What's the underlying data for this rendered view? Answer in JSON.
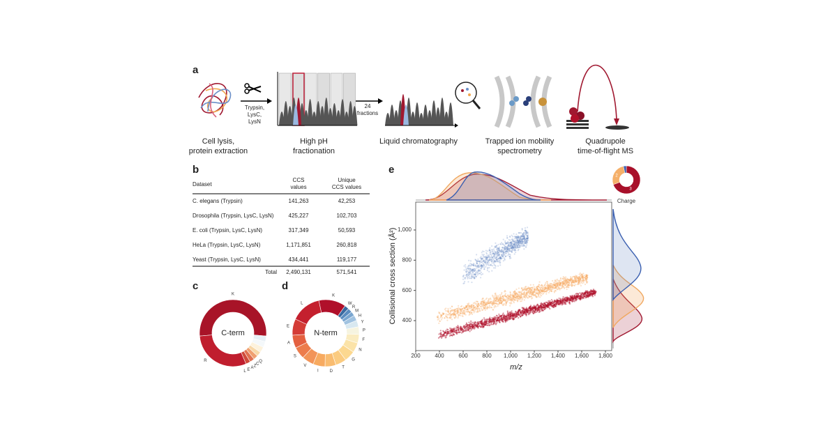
{
  "panel_a": {
    "label": "a",
    "enzymes": [
      "Trypsin,",
      "LysC,",
      "LysN"
    ],
    "fractions": [
      "24",
      "fractions"
    ],
    "steps": [
      [
        "Cell lysis,",
        "protein extraction"
      ],
      [
        "High pH",
        "fractionation"
      ],
      [
        "Liquid chromatography"
      ],
      [
        "Trapped ion mobility",
        "spectrometry"
      ],
      [
        "Quadrupole",
        "time-of-flight MS"
      ]
    ]
  },
  "panel_b": {
    "label": "b",
    "header": [
      [
        "Dataset"
      ],
      [
        "CCS",
        "values"
      ],
      [
        "Unique",
        "CCS values"
      ]
    ],
    "rows": [
      [
        "C. elegans (Trypsin)",
        "141,263",
        "42,253"
      ],
      [
        "Drosophila (Trypsin, LysC, LysN)",
        "425,227",
        "102,703"
      ],
      [
        "E. coli (Trypsin, LysC, LysN)",
        "317,349",
        "50,593"
      ],
      [
        "HeLa (Trypsin, LysC, LysN)",
        "1,171,851",
        "260,818"
      ],
      [
        "Yeast (Trypsin, LysC, LysN)",
        "434,441",
        "119,177"
      ]
    ],
    "total": [
      "Total",
      "2,490,131",
      "571,541"
    ]
  },
  "panel_c": {
    "label": "c",
    "center": "C-term",
    "letters": [
      "K",
      "R",
      "L",
      "E",
      "A",
      "Z",
      "C",
      "Q"
    ]
  },
  "panel_d": {
    "label": "d",
    "center": "N-term",
    "letters": [
      "K",
      "W",
      "R",
      "M",
      "H",
      "Y",
      "P",
      "F",
      "N",
      "G",
      "T",
      "D",
      "I",
      "V",
      "S",
      "A",
      "E",
      "L"
    ]
  },
  "panel_e": {
    "label": "e",
    "x_label": "m/z",
    "y_label": "Collisional cross section (Å²)",
    "xticks": [
      "200",
      "400",
      "600",
      "800",
      "1,000",
      "1,200",
      "1,400",
      "1,600",
      "1,800"
    ],
    "yticks": [
      "400",
      "600",
      "800",
      "1,000"
    ],
    "charge_title": "Charge",
    "charge_labels": [
      "2",
      "3"
    ]
  }
}
